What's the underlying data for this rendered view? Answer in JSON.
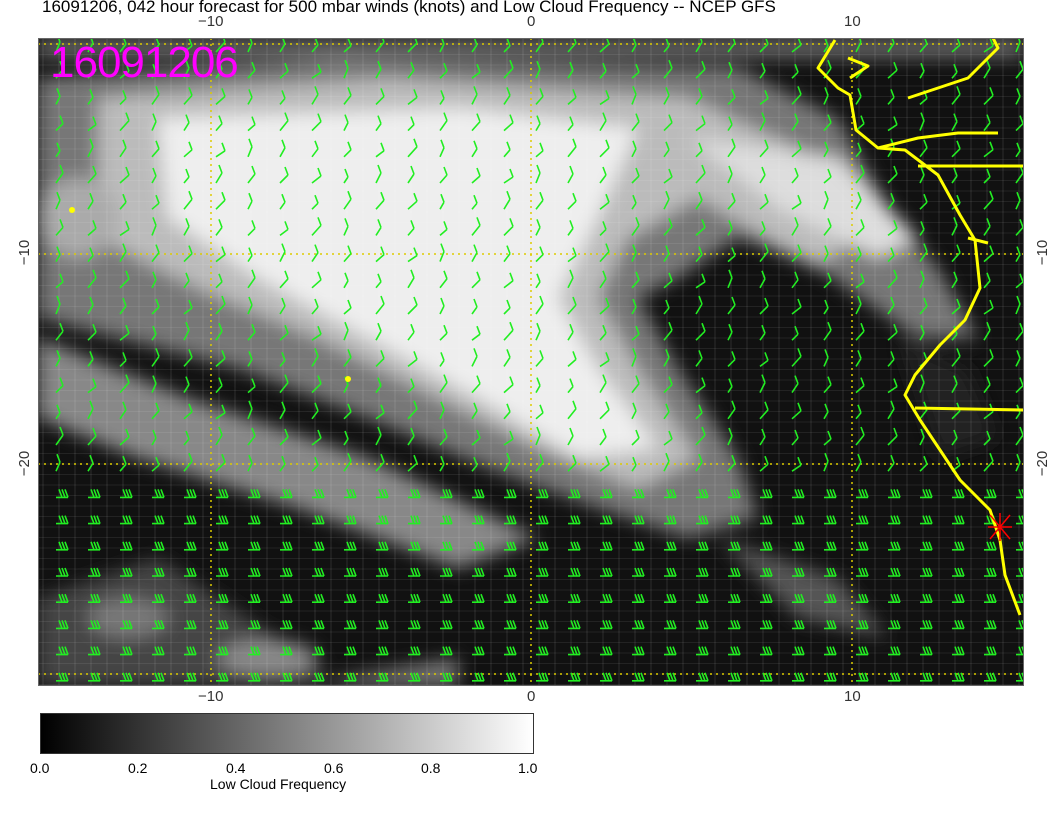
{
  "title": "16091206, 042 hour forecast for 500 mbar winds (knots) and Low Cloud Frequency -- NCEP GFS",
  "stamp": "16091206",
  "axes": {
    "top_ticks": [
      "−10",
      "0",
      "10"
    ],
    "bottom_ticks": [
      "−10",
      "0",
      "10"
    ],
    "left_ticks": [
      "−10",
      "−20"
    ],
    "right_ticks": [
      "−10",
      "−20"
    ]
  },
  "colorbar": {
    "title": "Low Cloud Frequency",
    "labels": [
      "0.0",
      "0.2",
      "0.4",
      "0.6",
      "0.8",
      "1.0"
    ],
    "range": [
      0.0,
      1.0
    ]
  },
  "colors": {
    "wind_barbs": "#22ee22",
    "coastline": "#ffff00",
    "stamp": "#ff00ff",
    "marker": "#ff0000",
    "gridlines": "#ddcc00"
  }
}
